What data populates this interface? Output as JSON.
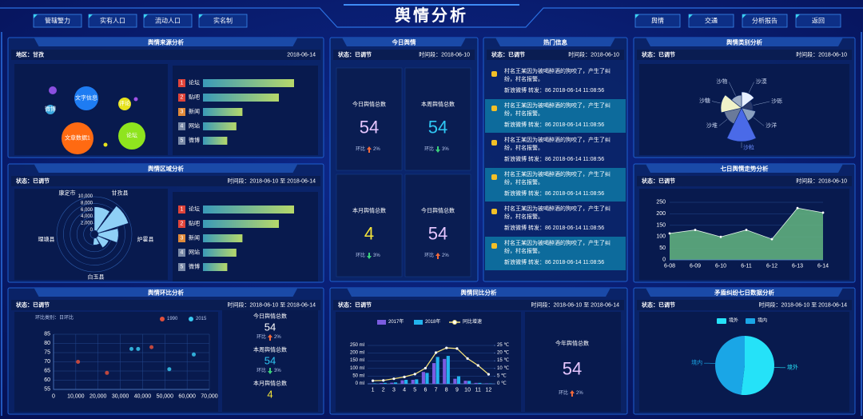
{
  "header": {
    "title": "舆情分析",
    "nav_left": [
      "管辖警力",
      "实有人口",
      "流动人口",
      "实名制"
    ],
    "nav_right": [
      "舆情",
      "交通",
      "分析报告",
      "返回"
    ]
  },
  "today": {
    "title": "今日舆情",
    "meta_left": "状态：已调节",
    "meta_right": "时间段：2018-06-10",
    "tiles": [
      {
        "label": "今日舆情总数",
        "value": 54,
        "color": "#e6c6ff",
        "change_label": "环比",
        "change": "2%",
        "trend": "up"
      },
      {
        "label": "本周舆情总数",
        "value": 54,
        "color": "#2fc8f4",
        "change_label": "环比",
        "change": "3%",
        "trend": "down"
      },
      {
        "label": "本月舆情总数",
        "value": 4,
        "color": "#f4e43a",
        "change_label": "环比",
        "change": "3%",
        "trend": "down"
      },
      {
        "label": "今日舆情总数",
        "value": 54,
        "color": "#e6c6ff",
        "change_label": "环比",
        "change": "2%",
        "trend": "up"
      }
    ]
  },
  "hot": {
    "title": "热门信息",
    "meta_left": "状态：已调节",
    "meta_right": "时间段：2018-06-10",
    "items": [
      {
        "text": "村名王某因为被喝醉酒的狗咬了，产生了纠纷，村名报警。",
        "meta": "新浪微博 转发：86 2018-06-14 11:08:56"
      },
      {
        "text": "村名王某因为被喝醉酒的狗咬了，产生了纠纷，村名报警。",
        "meta": "新浪微博 转发：86 2018-06-14 11:08:56"
      },
      {
        "text": "村名王某因为被喝醉酒的狗咬了，产生了纠纷，村名报警。",
        "meta": "新浪微博 转发：86 2018-06-14 11:08:56"
      },
      {
        "text": "村名王某因为被喝醉酒的狗咬了，产生了纠纷，村名报警。",
        "meta": "新浪微博 转发：86 2018-06-14 11:08:56"
      },
      {
        "text": "村名王某因为被喝醉酒的狗咬了，产生了纠纷，村名报警。",
        "meta": "新浪微博 转发：86 2018-06-14 11:08:56"
      },
      {
        "text": "村名王某因为被喝醉酒的狗咬了，产生了纠纷，村名报警。",
        "meta": "新浪微博 转发：86 2018-06-14 11:08:56"
      }
    ]
  },
  "chart_data": [
    {
      "type": "bubble",
      "title": "舆情来源分析",
      "meta_left": "地区：甘孜",
      "meta_right": "2018-06-14",
      "categories": [
        "文字信息",
        "评论",
        "微博",
        "文章数据1",
        "论坛",
        null,
        null,
        null
      ],
      "values": [
        30,
        16,
        12,
        40,
        34,
        10,
        5,
        5
      ],
      "colors": [
        "#1e7cf2",
        "#e6e21c",
        "#3aa8e0",
        "#ff6a12",
        "#8fe41e",
        "#8b4fe0",
        "#a052e6",
        "#e6e21c"
      ]
    },
    {
      "type": "ranking",
      "ranks": [
        1,
        2,
        3,
        4,
        5
      ],
      "categories": [
        "论坛",
        "贴吧",
        "新闻",
        "网站",
        "微博"
      ],
      "values": [
        150,
        125,
        65,
        55,
        40
      ],
      "rank_colors": [
        "#e0443a",
        "#e0443a",
        "#e08a3a",
        "#7a8aa8",
        "#7a8aa8"
      ]
    },
    {
      "type": "polar",
      "title": "舆情区域分析",
      "meta_left": "状态：已调节",
      "meta_right": "时间段：2018-06-10 至 2018-06-14",
      "categories": [
        "康定市",
        "甘孜县",
        "炉霍县",
        "白玉县",
        "理塘县"
      ],
      "values": [
        7000,
        9500,
        6000,
        3500,
        2000
      ],
      "color": "#8fd0f6",
      "rlim": [
        0,
        10000
      ],
      "rticks": [
        0,
        {
          "value": 2000,
          "label": "2,000"
        },
        {
          "value": 4000,
          "label": "4,000"
        },
        {
          "value": 6000,
          "label": "6,000"
        },
        {
          "value": 8000,
          "label": "8,000"
        },
        {
          "value": 10000,
          "label": "10,000"
        }
      ]
    },
    {
      "type": "ranking",
      "ranks": [
        1,
        2,
        3,
        4,
        5
      ],
      "categories": [
        "论坛",
        "贴吧",
        "新闻",
        "网站",
        "微博"
      ],
      "values": [
        150,
        125,
        65,
        55,
        40
      ],
      "rank_colors": [
        "#e0443a",
        "#e0443a",
        "#e08a3a",
        "#7a8aa8",
        "#7a8aa8"
      ]
    },
    {
      "type": "scatter",
      "title": "舆情环比分析",
      "meta_left": "状态：已调节",
      "meta_right": "时间段：2018-06-10 至 2018-06-14",
      "category_label": "环比类别：日环比",
      "grid": true,
      "xlim": [
        0,
        70000
      ],
      "xticks": [
        0,
        {
          "value": 10000,
          "label": "10,000"
        },
        {
          "value": 20000,
          "label": "20,000"
        },
        {
          "value": 30000,
          "label": "30,000"
        },
        {
          "value": 40000,
          "label": "40,000"
        },
        {
          "value": 50000,
          "label": "50,000"
        },
        {
          "value": 60000,
          "label": "60,000"
        },
        {
          "value": 70000,
          "label": "70,000"
        }
      ],
      "ylim": [
        55,
        85
      ],
      "yticks": [
        55,
        60,
        65,
        70,
        75,
        80,
        85
      ],
      "series": [
        {
          "name": "1990",
          "color": "#e0503c",
          "x": [
            44000,
            11000,
            24000
          ],
          "y": [
            78,
            70,
            64
          ]
        },
        {
          "name": "2015",
          "color": "#38c8f0",
          "x": [
            38000,
            35000,
            63000,
            52000
          ],
          "y": [
            77,
            77,
            74,
            66
          ]
        }
      ],
      "summary": [
        {
          "label": "今日舆情总数",
          "value": 54,
          "color": "#ffffff",
          "change_label": "环比",
          "change": "2%",
          "trend": "up"
        },
        {
          "label": "本周舆情总数",
          "value": 54,
          "color": "#2fc8f4",
          "change_label": "环比",
          "change": "3%",
          "trend": "down"
        },
        {
          "label": "本月舆情总数",
          "value": 4,
          "color": "#f4e43a"
        }
      ]
    },
    {
      "type": "barline",
      "title": "舆情同比分析",
      "meta_left": "状态：已调节",
      "meta_right": "时间段：2018-06-10 至 2018-06-14",
      "categories": [
        "1",
        "2",
        "3",
        "4",
        "5",
        "6",
        "7",
        "8",
        "9",
        "10",
        "11",
        "12"
      ],
      "series": [
        {
          "name": "2017年",
          "color": "#7b5ce0",
          "values": [
            2,
            5,
            7,
            23,
            26,
            77,
            135,
            162,
            33,
            20,
            6,
            3
          ]
        },
        {
          "name": "2018年",
          "color": "#22b4ee",
          "values": [
            3,
            6,
            9,
            26,
            29,
            71,
            175,
            182,
            49,
            19,
            6,
            2
          ]
        },
        {
          "name": "同比增速",
          "color": "#f2e07a",
          "axis": "y2",
          "values": [
            2,
            2.2,
            3.3,
            4.5,
            6.3,
            10.2,
            20.3,
            23.4,
            23,
            16.5,
            12,
            6.2
          ]
        }
      ],
      "ylim": [
        0,
        250
      ],
      "yticks": [
        {
          "value": 0,
          "label": "0 ml"
        },
        {
          "value": 50,
          "label": "50 ml"
        },
        {
          "value": 100,
          "label": "100 ml"
        },
        {
          "value": 150,
          "label": "150 ml"
        },
        {
          "value": 200,
          "label": "200 ml"
        },
        {
          "value": 250,
          "label": "250 ml"
        }
      ],
      "y2lim": [
        0,
        25
      ],
      "y2ticks": [
        {
          "value": 0,
          "label": "0 ℃"
        },
        {
          "value": 5,
          "label": "5 ℃"
        },
        {
          "value": 10,
          "label": "10 ℃"
        },
        {
          "value": 15,
          "label": "15 ℃"
        },
        {
          "value": 20,
          "label": "20 ℃"
        },
        {
          "value": 25,
          "label": "25 ℃"
        }
      ],
      "summary": [
        {
          "label": "今年舆情总数",
          "value": 54,
          "color": "#e6c6ff",
          "change_label": "环比",
          "change": "2%",
          "trend": "up"
        }
      ]
    },
    {
      "type": "rose",
      "title": "舆情类别分析",
      "meta_left": "状态：已调节",
      "meta_right": "时间段：2018-06-10",
      "categories": [
        "沙漠",
        "沙砾",
        "沙洋",
        "沙粒",
        "沙堆",
        "沙糖",
        "沙物"
      ],
      "values": [
        20,
        14,
        18,
        42,
        22,
        26,
        16
      ],
      "colors": [
        "#e8f0ff",
        "#2a3a6a",
        "#8aa0c0",
        "#4a6ae8",
        "#6a7a9a",
        "#f0f2c8",
        "#a0b0c8"
      ]
    },
    {
      "type": "area",
      "title": "七日舆情走势分析",
      "meta_left": "状态：已调节",
      "meta_right": "时间段：2018-06-10",
      "categories": [
        "6-08",
        "6-09",
        "6-10",
        "6-11",
        "6-12",
        "6-13",
        "6-14"
      ],
      "values": [
        115,
        130,
        100,
        130,
        90,
        225,
        205
      ],
      "color": "#5fae7e",
      "grid": true,
      "ylim": [
        0,
        250
      ],
      "yticks": [
        0,
        50,
        100,
        150,
        200,
        250
      ]
    },
    {
      "type": "pie",
      "title": "矛盾纠纷七日数据分析",
      "meta_left": "状态：已调节",
      "meta_right": "时间段：2018-06-10 至 2018-06-14",
      "categories": [
        "境外",
        "境内"
      ],
      "values": [
        52,
        48
      ],
      "colors": [
        "#25e2f8",
        "#1aa6e6"
      ]
    }
  ]
}
